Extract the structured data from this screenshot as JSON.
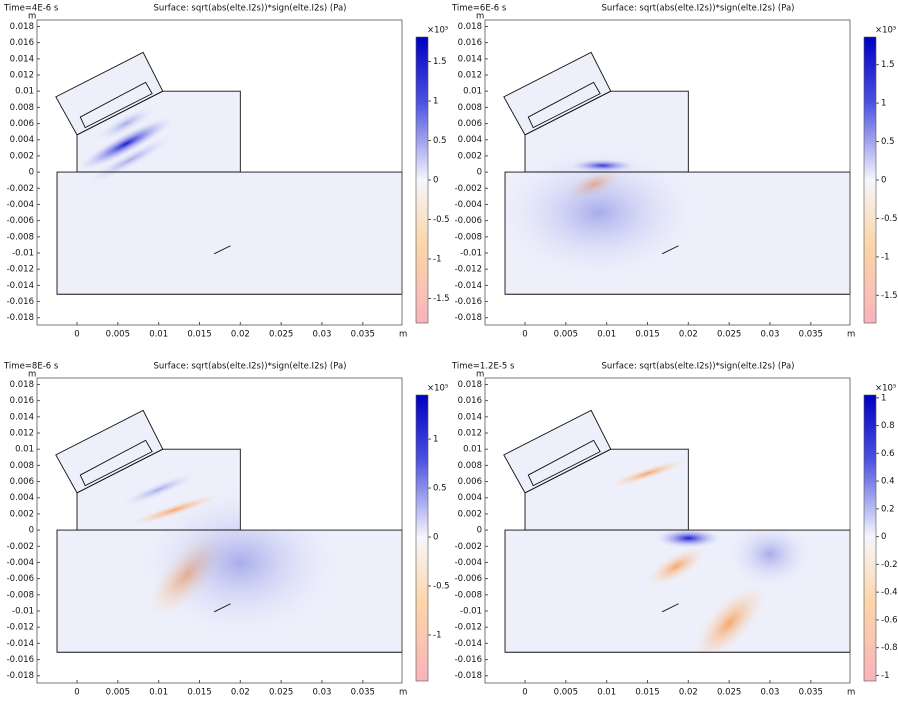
{
  "chart_data": [
    {
      "type": "surface",
      "time_label": "Time=4E-6 s",
      "title": "Surface: sqrt(abs(elte.I2s))*sign(elte.I2s) (Pa)",
      "xlabel": "m",
      "ylabel": "m",
      "xlim": [
        -0.0049,
        0.0398
      ],
      "ylim": [
        -0.0189,
        0.0188
      ],
      "xticks": [
        0,
        0.005,
        0.01,
        0.015,
        0.02,
        0.025,
        0.03,
        0.035
      ],
      "yticks": [
        0.018,
        0.016,
        0.014,
        0.012,
        0.01,
        0.008,
        0.006,
        0.004,
        0.002,
        0,
        -0.002,
        -0.004,
        -0.006,
        -0.008,
        -0.01,
        -0.012,
        -0.014,
        -0.016,
        -0.018
      ],
      "colorbar": {
        "label": "×10⁵",
        "clim": [
          -1.81,
          1.81
        ],
        "ticks": [
          1.5,
          1,
          0.5,
          0,
          -0.5,
          -1,
          -1.5
        ]
      }
    },
    {
      "type": "surface",
      "time_label": "Time=6E-6 s",
      "title": "Surface: sqrt(abs(elte.I2s))*sign(elte.I2s) (Pa)",
      "xlabel": "m",
      "ylabel": "m",
      "xlim": [
        -0.0049,
        0.0398
      ],
      "ylim": [
        -0.0189,
        0.0188
      ],
      "xticks": [
        0,
        0.005,
        0.01,
        0.015,
        0.02,
        0.025,
        0.03,
        0.035
      ],
      "yticks": [
        0.018,
        0.016,
        0.014,
        0.012,
        0.01,
        0.008,
        0.006,
        0.004,
        0.002,
        0,
        -0.002,
        -0.004,
        -0.006,
        -0.008,
        -0.01,
        -0.012,
        -0.014,
        -0.016,
        -0.018
      ],
      "colorbar": {
        "label": "×10⁵",
        "clim": [
          -1.86,
          1.86
        ],
        "ticks": [
          1.5,
          1,
          0.5,
          0,
          -0.5,
          -1,
          -1.5
        ]
      }
    },
    {
      "type": "surface",
      "time_label": "Time=8E-6 s",
      "title": "Surface: sqrt(abs(elte.I2s))*sign(elte.I2s) (Pa)",
      "xlabel": "m",
      "ylabel": "m",
      "xlim": [
        -0.0049,
        0.0398
      ],
      "ylim": [
        -0.0189,
        0.0188
      ],
      "xticks": [
        0,
        0.005,
        0.01,
        0.015,
        0.02,
        0.025,
        0.03,
        0.035
      ],
      "yticks": [
        0.018,
        0.016,
        0.014,
        0.012,
        0.01,
        0.008,
        0.006,
        0.004,
        0.002,
        0,
        -0.002,
        -0.004,
        -0.006,
        -0.008,
        -0.01,
        -0.012,
        -0.014,
        -0.016,
        -0.018
      ],
      "colorbar": {
        "label": "×10⁵",
        "clim": [
          -1.47,
          1.45
        ],
        "ticks": [
          1,
          0.5,
          0,
          -0.5,
          -1
        ]
      }
    },
    {
      "type": "surface",
      "time_label": "Time=1.2E-5 s",
      "title": "Surface: sqrt(abs(elte.I2s))*sign(elte.I2s) (Pa)",
      "xlabel": "m",
      "ylabel": "m",
      "xlim": [
        -0.0049,
        0.0398
      ],
      "ylim": [
        -0.0189,
        0.0188
      ],
      "xticks": [
        0,
        0.005,
        0.01,
        0.015,
        0.02,
        0.025,
        0.03,
        0.035
      ],
      "yticks": [
        0.018,
        0.016,
        0.014,
        0.012,
        0.01,
        0.008,
        0.006,
        0.004,
        0.002,
        0,
        -0.002,
        -0.004,
        -0.006,
        -0.008,
        -0.01,
        -0.012,
        -0.014,
        -0.016,
        -0.018
      ],
      "colorbar": {
        "label": "×10⁵",
        "clim": [
          -1.04,
          1.02
        ],
        "ticks": [
          1,
          0.8,
          0.6,
          0.4,
          0.2,
          0,
          -0.2,
          -0.4,
          -0.6,
          -0.8,
          -1
        ]
      }
    }
  ]
}
